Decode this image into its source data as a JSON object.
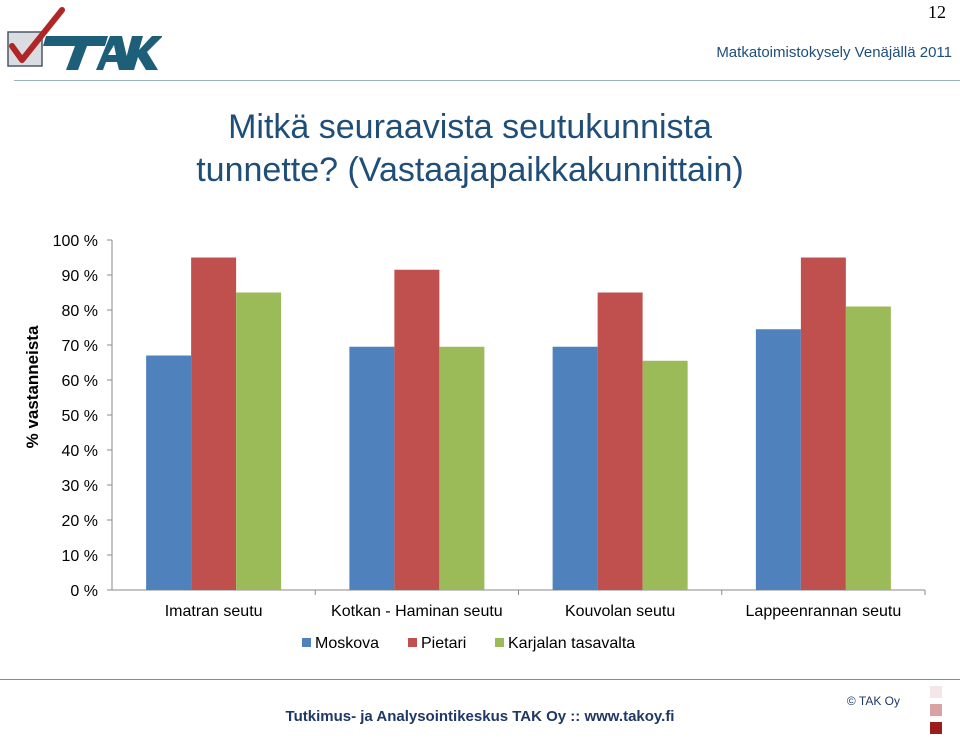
{
  "page": {
    "number": "12",
    "header_title": "Matkatoimistokysely Venäjällä 2011",
    "title_line1": "Mitkä seuraavista seutukunnista",
    "title_line2": "tunnette? (Vastaajapaikkakunnittain)",
    "footer": "Tutkimus- ja Analysointikeskus TAK Oy  ::  www.takoy.fi",
    "copyright": "© TAK Oy",
    "logo_text": "TAK"
  },
  "colors": {
    "moskova": "#4f81bd",
    "pietari": "#c0504d",
    "karjala": "#9bbb59",
    "title": "#1f4e79",
    "footer": "#1f3864"
  },
  "chart_data": {
    "type": "bar",
    "categories": [
      "Imatran seutu",
      "Kotkan - Haminan seutu",
      "Kouvolan seutu",
      "Lappeenrannan seutu"
    ],
    "series": [
      {
        "name": "Moskova",
        "values": [
          67,
          69.5,
          69.5,
          74.5
        ]
      },
      {
        "name": "Pietari",
        "values": [
          95,
          91.5,
          85,
          95
        ]
      },
      {
        "name": "Karjalan tasavalta",
        "values": [
          85,
          69.5,
          65.5,
          81
        ]
      }
    ],
    "ylabel": "% vastanneista",
    "ylim": [
      0,
      100
    ],
    "yticks": [
      "0 %",
      "10 %",
      "20 %",
      "30 %",
      "40 %",
      "50 %",
      "60 %",
      "70 %",
      "80 %",
      "90 %",
      "100 %"
    ],
    "grid": false,
    "legend": "bottom"
  }
}
